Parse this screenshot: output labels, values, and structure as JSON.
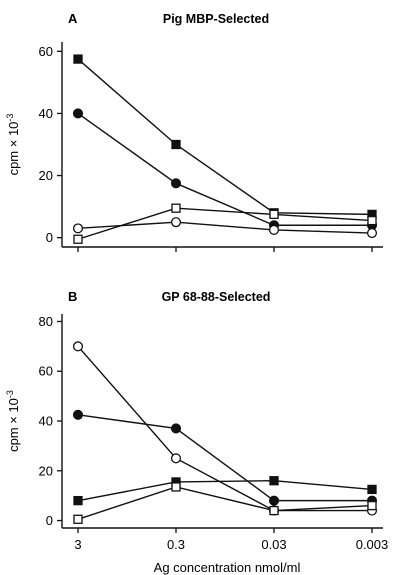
{
  "chart_data": [
    {
      "type": "line",
      "panel": "A",
      "title": "Pig MBP-Selected",
      "xlabel": "",
      "ylabel": "cpm × 10",
      "ylabel_exponent": "-3",
      "categories": [
        "3",
        "0.3",
        "0.03",
        "0.003"
      ],
      "ylim": [
        -3,
        63
      ],
      "yticks": [
        "0",
        "20",
        "40",
        "60"
      ],
      "series": [
        {
          "marker": "filled-square",
          "values": [
            57.5,
            30,
            8,
            7.5
          ]
        },
        {
          "marker": "filled-circle",
          "values": [
            40,
            17.5,
            4,
            4
          ]
        },
        {
          "marker": "open-square",
          "values": [
            -0.5,
            9.5,
            7.5,
            5.5
          ]
        },
        {
          "marker": "open-circle",
          "values": [
            3,
            5,
            2.5,
            1.5
          ]
        }
      ]
    },
    {
      "type": "line",
      "panel": "B",
      "title": "GP 68-88-Selected",
      "xlabel": "Ag concentration nmol/ml",
      "ylabel": "cpm × 10",
      "ylabel_exponent": "-3",
      "categories": [
        "3",
        "0.3",
        "0.03",
        "0.003"
      ],
      "ylim": [
        -3,
        83
      ],
      "yticks": [
        "0",
        "20",
        "40",
        "60",
        "80"
      ],
      "series": [
        {
          "marker": "open-circle",
          "values": [
            70,
            25,
            4,
            4
          ]
        },
        {
          "marker": "filled-circle",
          "values": [
            42.5,
            37,
            8,
            8
          ]
        },
        {
          "marker": "filled-square",
          "values": [
            8,
            15.5,
            16,
            12.5
          ]
        },
        {
          "marker": "open-square",
          "values": [
            0.5,
            13.5,
            4,
            6
          ]
        }
      ]
    }
  ]
}
